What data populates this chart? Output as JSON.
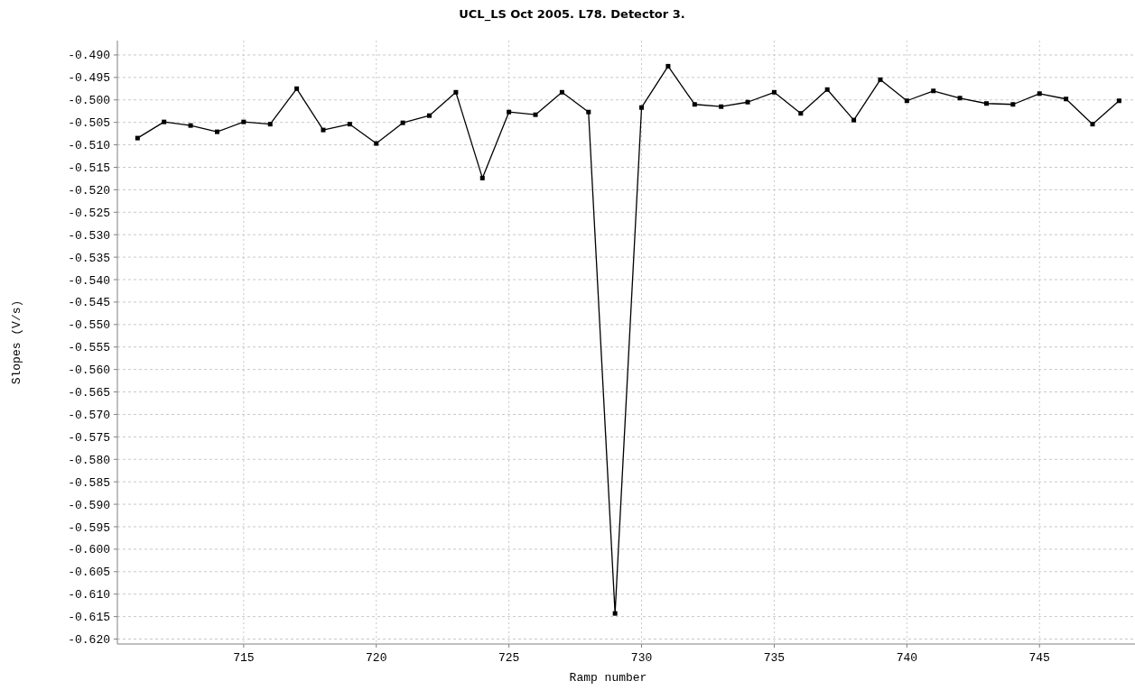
{
  "chart_data": {
    "type": "line",
    "title": "UCL_LS Oct 2005. L78. Detector 3.",
    "xlabel": "Ramp number",
    "ylabel": "Slopes (V/s)",
    "x": [
      711,
      712,
      713,
      714,
      715,
      716,
      717,
      718,
      719,
      720,
      721,
      722,
      723,
      724,
      725,
      726,
      727,
      728,
      729,
      730,
      731,
      732,
      733,
      734,
      735,
      736,
      737,
      738,
      739,
      740,
      741,
      742,
      743,
      744,
      745,
      746,
      747,
      748
    ],
    "series": [
      {
        "color": "#000000",
        "values": [
          -0.5085,
          -0.5049,
          -0.5057,
          -0.5071,
          -0.5049,
          -0.5054,
          -0.4975,
          -0.5067,
          -0.5054,
          -0.5097,
          -0.5051,
          -0.5035,
          -0.4983,
          -0.5174,
          -0.5027,
          -0.5033,
          -0.4983,
          -0.5027,
          -0.6143,
          -0.5017,
          -0.4925,
          -0.501,
          -0.5015,
          -0.5005,
          -0.4983,
          -0.503,
          -0.4977,
          -0.5045,
          -0.4955,
          -0.5002,
          -0.498,
          -0.4996,
          -0.5008,
          -0.501,
          -0.4986,
          -0.4998,
          -0.5054,
          -0.5002
        ]
      }
    ],
    "xlim": [
      710.24,
      748.6
    ],
    "ylim": [
      -0.6211,
      -0.4868
    ],
    "xticks": [
      715,
      720,
      725,
      730,
      735,
      740,
      745
    ],
    "yticks": [
      {
        "value": -0.49,
        "label": "-0.490"
      },
      {
        "value": -0.495,
        "label": "-0.495"
      },
      {
        "value": -0.5,
        "label": "-0.500"
      },
      {
        "value": -0.505,
        "label": "-0.505"
      },
      {
        "value": -0.51,
        "label": "-0.510"
      },
      {
        "value": -0.515,
        "label": "-0.515"
      },
      {
        "value": -0.52,
        "label": "-0.520"
      },
      {
        "value": -0.525,
        "label": "-0.525"
      },
      {
        "value": -0.53,
        "label": "-0.530"
      },
      {
        "value": -0.535,
        "label": "-0.535"
      },
      {
        "value": -0.54,
        "label": "-0.540"
      },
      {
        "value": -0.545,
        "label": "-0.545"
      },
      {
        "value": -0.55,
        "label": "-0.550"
      },
      {
        "value": -0.555,
        "label": "-0.555"
      },
      {
        "value": -0.56,
        "label": "-0.560"
      },
      {
        "value": -0.565,
        "label": "-0.565"
      },
      {
        "value": -0.57,
        "label": "-0.570"
      },
      {
        "value": -0.575,
        "label": "-0.575"
      },
      {
        "value": -0.58,
        "label": "-0.580"
      },
      {
        "value": -0.585,
        "label": "-0.585"
      },
      {
        "value": -0.59,
        "label": "-0.590"
      },
      {
        "value": -0.595,
        "label": "-0.595"
      },
      {
        "value": -0.6,
        "label": "-0.600"
      },
      {
        "value": -0.605,
        "label": "-0.605"
      },
      {
        "value": -0.61,
        "label": "-0.610"
      },
      {
        "value": -0.615,
        "label": "-0.615"
      },
      {
        "value": -0.62,
        "label": "-0.620"
      }
    ],
    "grid": true,
    "marker": "square",
    "line_style": "solid"
  }
}
